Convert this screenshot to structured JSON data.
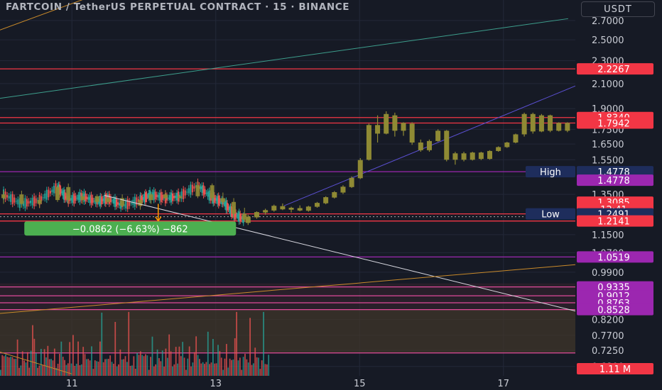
{
  "header": {
    "title": "FARTCOIN / TetherUS PERPETUAL CONTRACT · 15 · BINANCE",
    "currency": "USDT"
  },
  "colors": {
    "background": "#161a25",
    "grid": "#232838",
    "axis_text": "#c9ccd4",
    "candle": "#8f8a34",
    "red_level": "#f23645",
    "purple_level": "#9c27b0",
    "pink_level": "#e04a9a",
    "up_small": "#26a69a",
    "down_small": "#ef5350",
    "measure_green": "#4caf50",
    "high_low_tag": "#1e2d5c"
  },
  "chart_data": {
    "type": "candlestick",
    "title": "FARTCOIN / TetherUS PERPETUAL CONTRACT · 15 · BINANCE",
    "y_scale": "log",
    "ylim": [
      0.655,
      2.93
    ],
    "y_ticks": [
      "2.7000",
      "2.5000",
      "2.3000",
      "2.1000",
      "1.9000",
      "1.7500",
      "1.6500",
      "1.5500",
      "1.4500",
      "1.3500",
      "1.2500",
      "1.1500",
      "1.0700",
      "0.9900",
      "0.8200",
      "0.7700",
      "0.7250",
      "0.6800"
    ],
    "x_ticks": [
      {
        "label": "11",
        "day": 11
      },
      {
        "label": "13",
        "day": 13
      },
      {
        "label": "15",
        "day": 15
      },
      {
        "label": "17",
        "day": 17
      }
    ],
    "xlim_days": [
      10.0,
      18.0
    ],
    "candles": [
      {
        "day": 13.45,
        "open": 1.205,
        "high": 1.245,
        "low": 1.195,
        "close": 1.235
      },
      {
        "day": 13.57,
        "open": 1.232,
        "high": 1.262,
        "low": 1.225,
        "close": 1.258
      },
      {
        "day": 13.69,
        "open": 1.256,
        "high": 1.275,
        "low": 1.245,
        "close": 1.268
      },
      {
        "day": 13.81,
        "open": 1.266,
        "high": 1.296,
        "low": 1.26,
        "close": 1.29
      },
      {
        "day": 13.93,
        "open": 1.288,
        "high": 1.302,
        "low": 1.268,
        "close": 1.272
      },
      {
        "day": 14.05,
        "open": 1.27,
        "high": 1.285,
        "low": 1.256,
        "close": 1.28
      },
      {
        "day": 14.17,
        "open": 1.278,
        "high": 1.292,
        "low": 1.262,
        "close": 1.266
      },
      {
        "day": 14.29,
        "open": 1.265,
        "high": 1.29,
        "low": 1.26,
        "close": 1.286
      },
      {
        "day": 14.41,
        "open": 1.285,
        "high": 1.31,
        "low": 1.28,
        "close": 1.305
      },
      {
        "day": 14.53,
        "open": 1.303,
        "high": 1.34,
        "low": 1.298,
        "close": 1.335
      },
      {
        "day": 14.65,
        "open": 1.333,
        "high": 1.368,
        "low": 1.328,
        "close": 1.362
      },
      {
        "day": 14.77,
        "open": 1.36,
        "high": 1.4,
        "low": 1.352,
        "close": 1.392
      },
      {
        "day": 14.89,
        "open": 1.39,
        "high": 1.45,
        "low": 1.385,
        "close": 1.442
      },
      {
        "day": 15.01,
        "open": 1.44,
        "high": 1.56,
        "low": 1.435,
        "close": 1.548
      },
      {
        "day": 15.13,
        "open": 1.55,
        "high": 1.79,
        "low": 1.545,
        "close": 1.78
      },
      {
        "day": 15.25,
        "open": 1.78,
        "high": 1.85,
        "low": 1.66,
        "close": 1.72
      },
      {
        "day": 15.37,
        "open": 1.72,
        "high": 1.88,
        "low": 1.715,
        "close": 1.86
      },
      {
        "day": 15.49,
        "open": 1.85,
        "high": 1.87,
        "low": 1.7,
        "close": 1.74
      },
      {
        "day": 15.61,
        "open": 1.74,
        "high": 1.8,
        "low": 1.705,
        "close": 1.795
      },
      {
        "day": 15.73,
        "open": 1.79,
        "high": 1.8,
        "low": 1.645,
        "close": 1.66
      },
      {
        "day": 15.85,
        "open": 1.66,
        "high": 1.68,
        "low": 1.6,
        "close": 1.61
      },
      {
        "day": 15.97,
        "open": 1.61,
        "high": 1.68,
        "low": 1.6,
        "close": 1.67
      },
      {
        "day": 16.09,
        "open": 1.67,
        "high": 1.75,
        "low": 1.665,
        "close": 1.74
      },
      {
        "day": 16.21,
        "open": 1.74,
        "high": 1.745,
        "low": 1.54,
        "close": 1.55
      },
      {
        "day": 16.33,
        "open": 1.55,
        "high": 1.6,
        "low": 1.52,
        "close": 1.59
      },
      {
        "day": 16.45,
        "open": 1.59,
        "high": 1.6,
        "low": 1.54,
        "close": 1.55
      },
      {
        "day": 16.57,
        "open": 1.55,
        "high": 1.6,
        "low": 1.545,
        "close": 1.595
      },
      {
        "day": 16.69,
        "open": 1.595,
        "high": 1.6,
        "low": 1.548,
        "close": 1.555
      },
      {
        "day": 16.81,
        "open": 1.555,
        "high": 1.61,
        "low": 1.55,
        "close": 1.605
      },
      {
        "day": 16.93,
        "open": 1.605,
        "high": 1.635,
        "low": 1.6,
        "close": 1.63
      },
      {
        "day": 17.05,
        "open": 1.63,
        "high": 1.665,
        "low": 1.625,
        "close": 1.66
      },
      {
        "day": 17.17,
        "open": 1.66,
        "high": 1.72,
        "low": 1.655,
        "close": 1.715
      },
      {
        "day": 17.29,
        "open": 1.715,
        "high": 1.87,
        "low": 1.7,
        "close": 1.86
      },
      {
        "day": 17.41,
        "open": 1.86,
        "high": 1.87,
        "low": 1.72,
        "close": 1.735
      },
      {
        "day": 17.53,
        "open": 1.735,
        "high": 1.86,
        "low": 1.73,
        "close": 1.85
      },
      {
        "day": 17.65,
        "open": 1.85,
        "high": 1.855,
        "low": 1.73,
        "close": 1.74
      },
      {
        "day": 17.77,
        "open": 1.74,
        "high": 1.8,
        "low": 1.735,
        "close": 1.795
      },
      {
        "day": 17.89,
        "open": 1.795,
        "high": 1.8,
        "low": 1.73,
        "close": 1.74
      }
    ],
    "hist_candles": [
      {
        "day": 10.05,
        "open": 1.33,
        "high": 1.37,
        "low": 1.3,
        "close": 1.35
      },
      {
        "day": 10.3,
        "open": 1.35,
        "high": 1.37,
        "low": 1.28,
        "close": 1.3
      },
      {
        "day": 10.55,
        "open": 1.3,
        "high": 1.34,
        "low": 1.28,
        "close": 1.32
      },
      {
        "day": 10.8,
        "open": 1.32,
        "high": 1.4,
        "low": 1.31,
        "close": 1.39
      },
      {
        "day": 10.95,
        "open": 1.39,
        "high": 1.41,
        "low": 1.3,
        "close": 1.32
      },
      {
        "day": 11.15,
        "open": 1.32,
        "high": 1.36,
        "low": 1.3,
        "close": 1.34
      },
      {
        "day": 11.35,
        "open": 1.34,
        "high": 1.35,
        "low": 1.3,
        "close": 1.31
      },
      {
        "day": 11.5,
        "open": 1.31,
        "high": 1.34,
        "low": 1.3,
        "close": 1.33
      },
      {
        "day": 11.7,
        "open": 1.33,
        "high": 1.35,
        "low": 1.28,
        "close": 1.29
      },
      {
        "day": 11.95,
        "open": 1.29,
        "high": 1.33,
        "low": 1.27,
        "close": 1.32
      },
      {
        "day": 12.1,
        "open": 1.32,
        "high": 1.36,
        "low": 1.3,
        "close": 1.35
      },
      {
        "day": 12.3,
        "open": 1.35,
        "high": 1.37,
        "low": 1.32,
        "close": 1.33
      },
      {
        "day": 12.5,
        "open": 1.33,
        "high": 1.35,
        "low": 1.31,
        "close": 1.34
      },
      {
        "day": 12.75,
        "open": 1.34,
        "high": 1.42,
        "low": 1.33,
        "close": 1.4
      },
      {
        "day": 12.95,
        "open": 1.4,
        "high": 1.41,
        "low": 1.31,
        "close": 1.33
      },
      {
        "day": 13.1,
        "open": 1.33,
        "high": 1.36,
        "low": 1.3,
        "close": 1.31
      },
      {
        "day": 13.25,
        "open": 1.31,
        "high": 1.33,
        "low": 1.23,
        "close": 1.25
      },
      {
        "day": 13.4,
        "open": 1.25,
        "high": 1.28,
        "low": 1.21,
        "close": 1.22
      }
    ],
    "volume_scale_max": 1.6,
    "volume": [
      0.3,
      0.6,
      0.4,
      0.9,
      0.5,
      0.35,
      0.7,
      0.45,
      0.3,
      0.55,
      0.8,
      0.4,
      0.3,
      0.5,
      0.65,
      0.35,
      0.45,
      0.3,
      0.6,
      0.9,
      1.2,
      0.5,
      0.4,
      0.3,
      0.55,
      0.45,
      0.7,
      0.35,
      1.1,
      0.4,
      0.3,
      0.5,
      0.6,
      0.4,
      0.35,
      0.45,
      1.45,
      0.5,
      0.3,
      0.4
    ],
    "price_labels": [
      {
        "value": 2.2267,
        "text": "2.2267",
        "color": "#f23645"
      },
      {
        "value": 1.834,
        "text": "1.8340",
        "color": "#f23645"
      },
      {
        "value": 1.7942,
        "text": "1.7942",
        "color": "#f23645"
      },
      {
        "value": 1.4778,
        "text": "1.4778",
        "color": "#1e2d5c",
        "tag": "High"
      },
      {
        "value": 1.4778,
        "text": "1.4778",
        "color": "#9c27b0",
        "offset": 12
      },
      {
        "value": 1.3085,
        "text": "1.3085",
        "color": "#f23645"
      },
      {
        "value": 1.2735,
        "text": "12:41",
        "color": "#f23645"
      },
      {
        "value": 1.2491,
        "text": "1.2491",
        "color": "#1e2d5c",
        "tag": "Low"
      },
      {
        "value": 1.2141,
        "text": "1.2141",
        "color": "#f23645"
      },
      {
        "value": 1.0519,
        "text": "1.0519",
        "color": "#9c27b0"
      },
      {
        "value": 0.9335,
        "text": "0.9335",
        "color": "#9c27b0"
      },
      {
        "value": 0.9012,
        "text": "0.9012",
        "color": "#9c27b0"
      },
      {
        "value": 0.8763,
        "text": "0.8763",
        "color": "#9c27b0"
      },
      {
        "value": 0.8528,
        "text": "0.8528",
        "color": "#9c27b0"
      }
    ],
    "volume_label": "1.11 M",
    "horizontal_levels": [
      {
        "value": 2.2267,
        "color": "#f23645"
      },
      {
        "value": 1.834,
        "color": "#f23645"
      },
      {
        "value": 1.7942,
        "color": "#f23645"
      },
      {
        "value": 1.4778,
        "color": "#9c27b0"
      },
      {
        "value": 1.2491,
        "color": "#f23645"
      },
      {
        "value": 1.2141,
        "color": "#f23645"
      },
      {
        "value": 1.0519,
        "color": "#9c27b0"
      },
      {
        "value": 0.9335,
        "color": "#e04a9a"
      },
      {
        "value": 0.9012,
        "color": "#e04a9a"
      },
      {
        "value": 0.8763,
        "color": "#e04a9a"
      },
      {
        "value": 0.8528,
        "color": "#e04a9a"
      },
      {
        "value": 0.7175,
        "color": "#e04a9a"
      }
    ],
    "trendlines": [
      {
        "x1": 10.0,
        "y1": 2.6,
        "x2": 11.2,
        "y2": 2.95,
        "color": "#c98a2a"
      },
      {
        "x1": 10.0,
        "y1": 1.98,
        "x2": 17.9,
        "y2": 2.72,
        "color": "#3d9e8c"
      },
      {
        "x1": 13.95,
        "y1": 1.29,
        "x2": 18.0,
        "y2": 2.08,
        "color": "#5a4fd0"
      },
      {
        "x1": 11.45,
        "y1": 1.345,
        "x2": 18.05,
        "y2": 0.845,
        "color": "#d8d8e0"
      },
      {
        "x1": 10.0,
        "y1": 0.84,
        "x2": 18.0,
        "y2": 1.02,
        "color": "#c98a2a"
      },
      {
        "x1": 10.0,
        "y1": 0.72,
        "x2": 11.0,
        "y2": 0.66,
        "color": "#c98a2a"
      }
    ],
    "measure": {
      "text": "−0.0862 (−6.63%) −862",
      "day": 10.2,
      "price": 1.185,
      "start_day": 12.2,
      "start_price": 1.3,
      "end_price": 1.2141
    }
  }
}
